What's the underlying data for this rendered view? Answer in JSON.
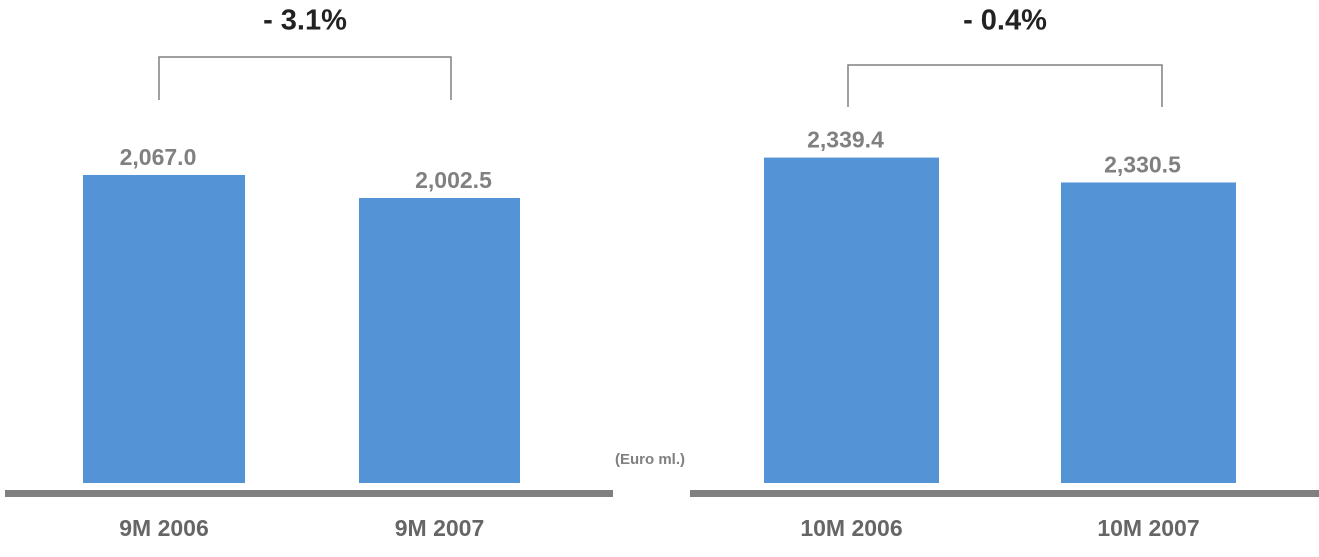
{
  "chart_data": [
    {
      "type": "bar",
      "categories": [
        "9M 2006",
        "9M 2007"
      ],
      "values": [
        2067.0,
        2002.5
      ],
      "value_labels": [
        "2,067.0",
        "2,002.5"
      ],
      "color": "#5393d6",
      "ylim": [
        1204,
        2277
      ],
      "annotation": "- 3.1%"
    },
    {
      "type": "bar",
      "categories": [
        "10M 2006",
        "10M 2007"
      ],
      "values": [
        2339.4,
        2330.5
      ],
      "value_labels": [
        "2,339.4",
        "2,330.5"
      ],
      "color": "#5393d6",
      "ylim": [
        2223,
        2360
      ],
      "annotation": "- 0.4%"
    }
  ],
  "units": "(Euro ml.)"
}
